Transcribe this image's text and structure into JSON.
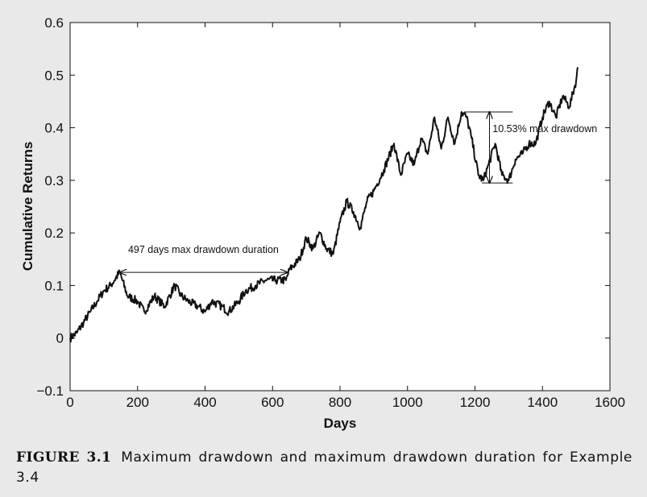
{
  "chart_data": {
    "type": "line",
    "xlabel": "Days",
    "ylabel": "Cumulative Returns",
    "xlim": [
      0,
      1600
    ],
    "ylim": [
      -0.1,
      0.6
    ],
    "x_ticks": [
      0,
      200,
      400,
      600,
      800,
      1000,
      1200,
      1400,
      1600
    ],
    "y_ticks": [
      -0.1,
      0,
      0.1,
      0.2,
      0.3,
      0.4,
      0.5,
      0.6
    ],
    "y_tick_labels": [
      "−0.1",
      "0",
      "0.1",
      "0.2",
      "0.3",
      "0.4",
      "0.5",
      "0.6"
    ],
    "grid": false,
    "series": [
      {
        "color": "#111111",
        "x": [
          0,
          20,
          40,
          60,
          80,
          100,
          120,
          147,
          170,
          200,
          220,
          250,
          280,
          310,
          330,
          350,
          380,
          400,
          420,
          450,
          470,
          500,
          520,
          550,
          580,
          610,
          640,
          650,
          680,
          700,
          720,
          740,
          760,
          780,
          800,
          820,
          840,
          860,
          880,
          900,
          930,
          960,
          980,
          1000,
          1020,
          1040,
          1060,
          1080,
          1100,
          1120,
          1140,
          1160,
          1175,
          1190,
          1210,
          1225,
          1240,
          1260,
          1280,
          1300,
          1320,
          1340,
          1360,
          1380,
          1400,
          1420,
          1440,
          1460,
          1480,
          1500,
          1505
        ],
        "y": [
          0.0,
          0.01,
          0.03,
          0.05,
          0.07,
          0.09,
          0.1,
          0.125,
          0.08,
          0.07,
          0.05,
          0.08,
          0.06,
          0.1,
          0.08,
          0.07,
          0.06,
          0.05,
          0.07,
          0.06,
          0.05,
          0.07,
          0.09,
          0.1,
          0.11,
          0.11,
          0.11,
          0.13,
          0.15,
          0.19,
          0.17,
          0.2,
          0.17,
          0.16,
          0.22,
          0.26,
          0.24,
          0.21,
          0.26,
          0.28,
          0.32,
          0.37,
          0.31,
          0.35,
          0.33,
          0.38,
          0.35,
          0.42,
          0.36,
          0.42,
          0.37,
          0.43,
          0.42,
          0.38,
          0.31,
          0.3,
          0.33,
          0.37,
          0.31,
          0.3,
          0.34,
          0.35,
          0.37,
          0.37,
          0.42,
          0.45,
          0.42,
          0.46,
          0.44,
          0.49,
          0.515
        ]
      }
    ],
    "annotations": [
      {
        "text": "497 days max drawdown duration",
        "type": "horizontal-arrow",
        "x_start": 147,
        "x_end": 644,
        "y": 0.125,
        "text_x": 395,
        "text_y": 0.162
      },
      {
        "text": "10.53% max drawdown",
        "type": "vertical-arrow",
        "x": 1243,
        "y_start": 0.43,
        "y_end": 0.295,
        "cap_x_start": 1168,
        "cap_x_end": 1312,
        "text_x": 1252,
        "text_y": 0.392
      }
    ]
  },
  "caption": {
    "label": "FIGURE 3.1",
    "text": "Maximum drawdown and maximum drawdown duration for Example 3.4"
  }
}
